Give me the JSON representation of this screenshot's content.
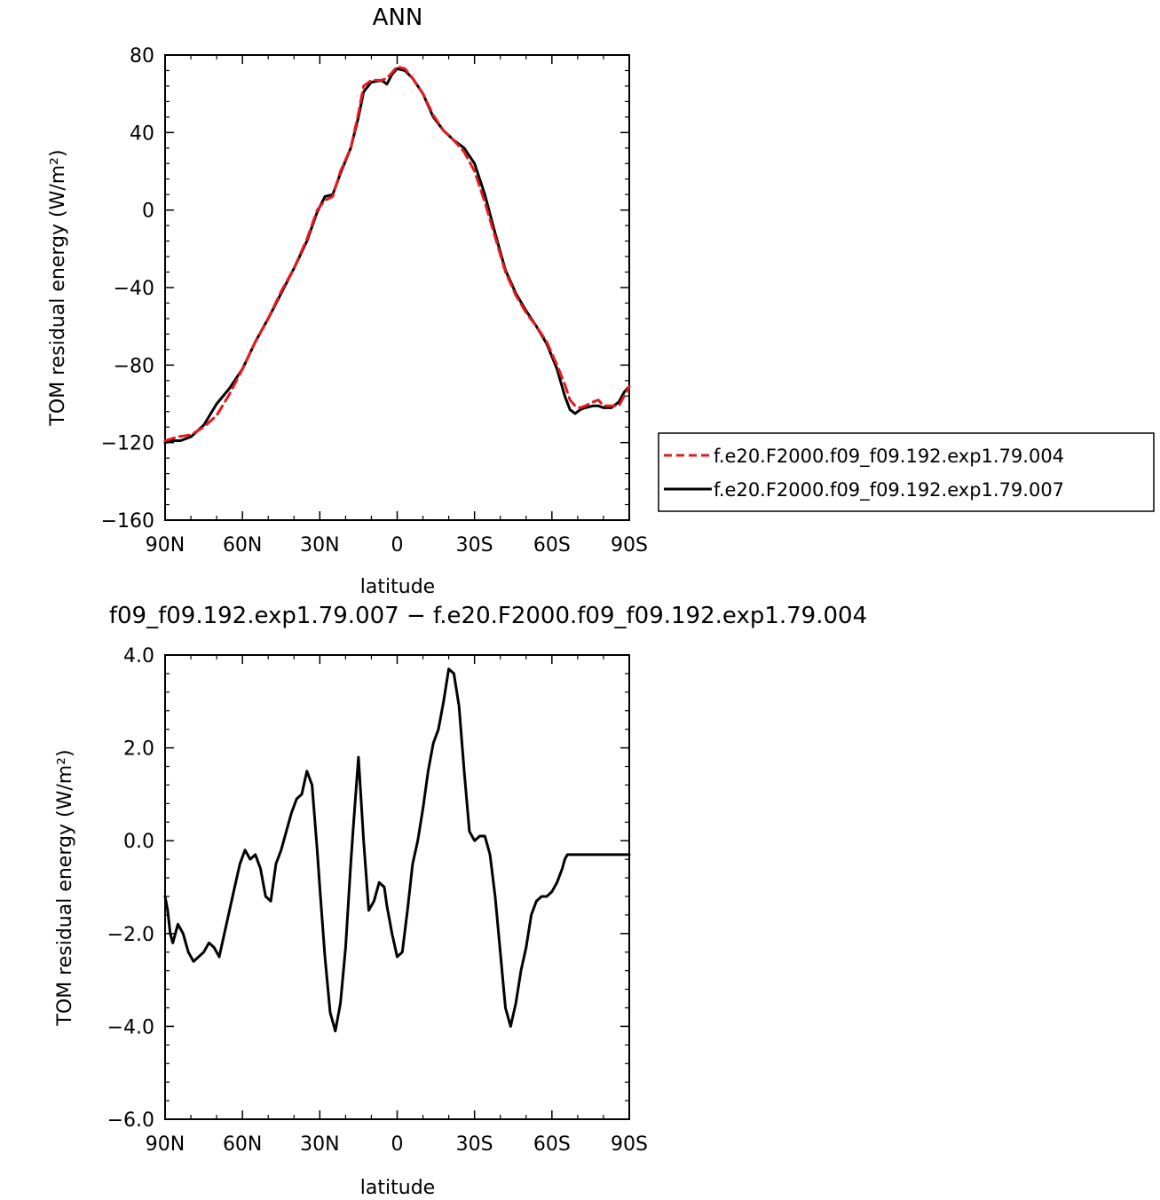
{
  "chart_data": [
    {
      "type": "line",
      "title": "ANN",
      "xlabel": "latitude",
      "ylabel": "TOM residual energy (W/m²)",
      "xlim": [
        90,
        -90
      ],
      "ylim": [
        -160,
        80
      ],
      "x_ticks": [
        90,
        60,
        30,
        0,
        -30,
        -60,
        -90
      ],
      "x_tick_labels": [
        "90N",
        "60N",
        "30N",
        "0",
        "30S",
        "60S",
        "90S"
      ],
      "y_ticks": [
        -160,
        -120,
        -80,
        -40,
        0,
        40,
        80
      ],
      "y_tick_labels": [
        "−160",
        "−120",
        "−80",
        "−40",
        "0",
        "40",
        "80"
      ],
      "legend": "right",
      "series": [
        {
          "name": "f.e20.F2000.f09_f09.192.exp1.79.004",
          "color": "#e8191d",
          "dash": "dashed",
          "x": [
            90,
            85,
            80,
            75,
            70,
            65,
            60,
            55,
            50,
            45,
            40,
            35,
            31,
            28,
            25,
            22,
            18,
            15,
            13,
            10,
            6,
            4,
            2,
            0,
            -3,
            -6,
            -10,
            -14,
            -18,
            -22,
            -26,
            -30,
            -34,
            -38,
            -42,
            -46,
            -50,
            -54,
            -58,
            -62,
            -65,
            -67,
            -69,
            -71,
            -73,
            -76,
            -78,
            -80,
            -83,
            -86,
            -88,
            -90
          ],
          "y": [
            -119,
            -117,
            -116,
            -112,
            -106,
            -95,
            -82,
            -68,
            -56,
            -42,
            -30,
            -15,
            0,
            5,
            7,
            20,
            32,
            50,
            64,
            67,
            67,
            68,
            71,
            74,
            73,
            68,
            60,
            49,
            41,
            36,
            30,
            20,
            4,
            -14,
            -32,
            -44,
            -53,
            -60,
            -68,
            -80,
            -90,
            -98,
            -101,
            -102,
            -101,
            -99,
            -98,
            -101,
            -101,
            -101,
            -96,
            -91
          ]
        },
        {
          "name": "f.e20.F2000.f09_f09.192.exp1.79.007",
          "color": "#000000",
          "dash": "solid",
          "x": [
            90,
            87,
            84,
            80,
            75,
            70,
            65,
            60,
            55,
            50,
            45,
            40,
            35,
            31,
            28,
            25,
            22,
            18,
            15,
            13,
            10,
            6,
            4,
            2,
            0,
            -3,
            -6,
            -10,
            -14,
            -18,
            -22,
            -26,
            -30,
            -34,
            -38,
            -42,
            -46,
            -50,
            -54,
            -58,
            -62,
            -65,
            -67,
            -69,
            -71,
            -73,
            -76,
            -78,
            -80,
            -83,
            -86,
            -88,
            -90
          ],
          "y": [
            -120,
            -119,
            -119,
            -117,
            -111,
            -100,
            -92,
            -82,
            -68,
            -56,
            -43,
            -30,
            -16,
            -1,
            7,
            8,
            19,
            32,
            48,
            61,
            66,
            67,
            65,
            70,
            73,
            72,
            68,
            60,
            48,
            41,
            36,
            32,
            24,
            8,
            -12,
            -31,
            -43,
            -52,
            -60,
            -69,
            -82,
            -96,
            -103,
            -105,
            -103,
            -102,
            -101,
            -101,
            -102,
            -102,
            -99,
            -94,
            -91
          ]
        }
      ]
    },
    {
      "type": "line",
      "title": "f09_f09.192.exp1.79.007 − f.e20.F2000.f09_f09.192.exp1.79.004",
      "xlabel": "latitude",
      "ylabel": "TOM residual energy (W/m²)",
      "xlim": [
        90,
        -90
      ],
      "ylim": [
        -6,
        4
      ],
      "x_ticks": [
        90,
        60,
        30,
        0,
        -30,
        -60,
        -90
      ],
      "x_tick_labels": [
        "90N",
        "60N",
        "30N",
        "0",
        "30S",
        "60S",
        "90S"
      ],
      "y_ticks": [
        -6,
        -4,
        -2,
        0,
        2,
        4
      ],
      "y_tick_labels": [
        "−6.0",
        "−4.0",
        "−2.0",
        "0.0",
        "2.0",
        "4.0"
      ],
      "series": [
        {
          "color": "#000000",
          "dash": "solid",
          "x": [
            90,
            89,
            88,
            87,
            85,
            83,
            81,
            79,
            77,
            75,
            73,
            71,
            69,
            67,
            65,
            63,
            61,
            59,
            57,
            55,
            53,
            51,
            49,
            47,
            45,
            43,
            41,
            39,
            37,
            35,
            33,
            31,
            30,
            28,
            26,
            24,
            22,
            20,
            18,
            17,
            15,
            13,
            11,
            9,
            7,
            5,
            4,
            2,
            0,
            -2,
            -4,
            -6,
            -8,
            -10,
            -12,
            -14,
            -16,
            -18,
            -20,
            -22,
            -24,
            -26,
            -28,
            -30,
            -32,
            -34,
            -35,
            -36,
            -38,
            -40,
            -42,
            -44,
            -46,
            -48,
            -50,
            -52,
            -54,
            -56,
            -58,
            -60,
            -62,
            -64,
            -65,
            -66,
            -68,
            -70,
            -72,
            -74,
            -76,
            -78,
            -80,
            -82,
            -84,
            -86,
            -88,
            -90
          ],
          "y": [
            -1.2,
            -1.5,
            -2.0,
            -2.2,
            -1.8,
            -2.0,
            -2.4,
            -2.6,
            -2.5,
            -2.4,
            -2.2,
            -2.3,
            -2.5,
            -2.0,
            -1.5,
            -1.0,
            -0.5,
            -0.2,
            -0.4,
            -0.3,
            -0.6,
            -1.2,
            -1.3,
            -0.5,
            -0.2,
            0.2,
            0.6,
            0.9,
            1.0,
            1.5,
            1.2,
            -0.2,
            -1.0,
            -2.5,
            -3.7,
            -4.1,
            -3.5,
            -2.3,
            -0.5,
            0.3,
            1.8,
            0.0,
            -1.5,
            -1.3,
            -0.9,
            -1.0,
            -1.4,
            -2.0,
            -2.5,
            -2.4,
            -1.5,
            -0.5,
            0.0,
            0.7,
            1.5,
            2.1,
            2.4,
            3.0,
            3.7,
            3.6,
            2.9,
            1.5,
            0.2,
            0.0,
            0.1,
            0.1,
            -0.1,
            -0.3,
            -1.2,
            -2.4,
            -3.6,
            -4.0,
            -3.5,
            -2.8,
            -2.3,
            -1.6,
            -1.3,
            -1.2,
            -1.2,
            -1.1,
            -0.9,
            -0.6,
            -0.4,
            -0.3,
            -0.3,
            -0.3,
            -0.3,
            -0.3,
            -0.3,
            -0.3,
            -0.3,
            -0.3,
            -0.3,
            -0.3,
            -0.3,
            -0.3
          ]
        }
      ]
    }
  ]
}
